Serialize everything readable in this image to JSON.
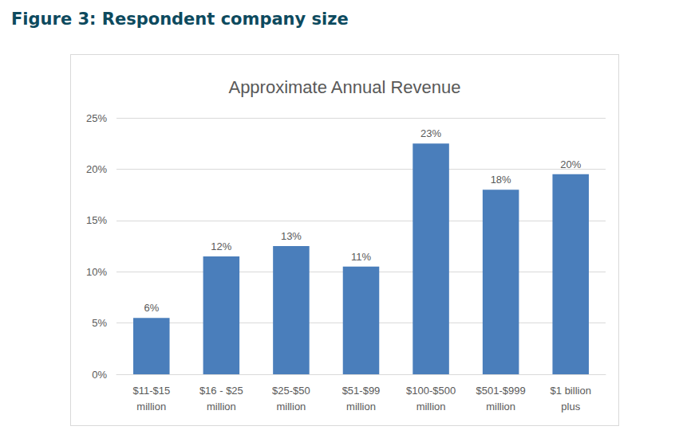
{
  "heading": "Figure 3: Respondent company size",
  "chart_data": {
    "type": "bar",
    "title": "Approximate Annual Revenue",
    "categories": [
      "$11-$15\nmillion",
      "$16 - $25\nmillion",
      "$25-$50\nmillion",
      "$51-$99\nmillion",
      "$100-$500\nmillion",
      "$501-$999\nmillion",
      "$1 billion\nplus"
    ],
    "values": [
      5.5,
      11.5,
      12.5,
      10.5,
      22.5,
      18,
      19.5
    ],
    "value_labels": [
      "6%",
      "12%",
      "13%",
      "11%",
      "23%",
      "18%",
      "20%"
    ],
    "color": "#4a7ebb",
    "ylim": [
      0,
      25
    ],
    "yticks": [
      {
        "value": 0,
        "label": "0%"
      },
      {
        "value": 5,
        "label": "5%"
      },
      {
        "value": 10,
        "label": "10%"
      },
      {
        "value": 15,
        "label": "15%"
      },
      {
        "value": 20,
        "label": "20%"
      },
      {
        "value": 25,
        "label": "25%"
      }
    ],
    "grid": true,
    "data_labels": true
  }
}
